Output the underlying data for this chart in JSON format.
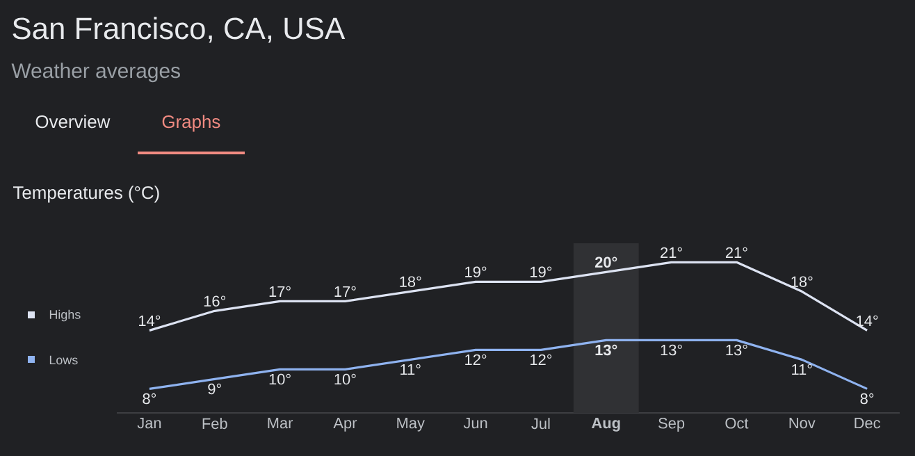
{
  "chart_data": {
    "type": "line",
    "title": "San Francisco, CA, USA",
    "subtitle": "Weather averages",
    "annotations": [
      "Overview",
      "Graphs",
      "Temperatures (°C)"
    ],
    "categories": [
      "Jan",
      "Feb",
      "Mar",
      "Apr",
      "May",
      "Jun",
      "Jul",
      "Aug",
      "Sep",
      "Oct",
      "Nov",
      "Dec"
    ],
    "series": [
      {
        "name": "Highs",
        "color": "#dde3f2",
        "values": [
          14,
          16,
          17,
          17,
          18,
          19,
          19,
          20,
          21,
          21,
          18,
          14
        ],
        "value_labels": [
          "14°",
          "16°",
          "17°",
          "17°",
          "18°",
          "19°",
          "19°",
          "20°",
          "21°",
          "21°",
          "18°",
          "14°"
        ]
      },
      {
        "name": "Lows",
        "color": "#8fb3f0",
        "values": [
          8,
          9,
          10,
          10,
          11,
          12,
          12,
          13,
          13,
          13,
          11,
          8
        ],
        "value_labels": [
          "8°",
          "9°",
          "10°",
          "10°",
          "11°",
          "12°",
          "12°",
          "13°",
          "13°",
          "13°",
          "11°",
          "8°"
        ]
      }
    ],
    "bands": [
      {
        "axis": "x",
        "from": "Aug",
        "to": "Aug",
        "color": "#303134"
      }
    ],
    "tick_labels": "x",
    "legend": "left",
    "grid": false,
    "marker": "none",
    "line_style": "solid"
  }
}
